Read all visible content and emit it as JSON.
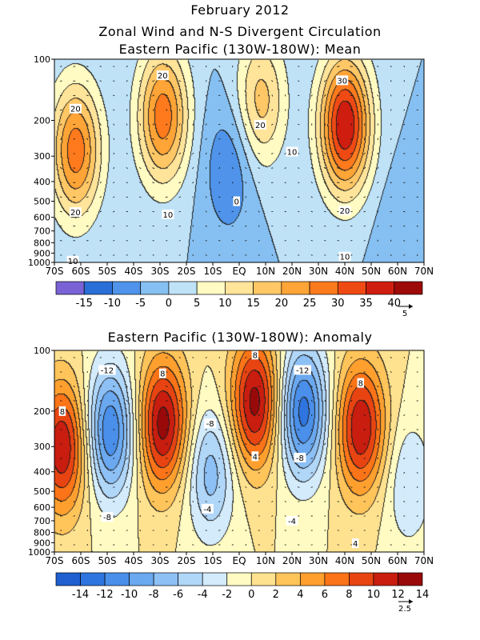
{
  "figure": {
    "title_line1": "February 2012",
    "title_line2": "Zonal Wind and N-S Divergent Circulation",
    "panel1_title": "Eastern Pacific (130W-180W): Mean",
    "panel2_title": "Eastern Pacific (130W-180W): Anomaly"
  },
  "chart_data": [
    {
      "type": "heatmap",
      "title": "Eastern Pacific (130W-180W): Mean",
      "x_ticks": [
        "70S",
        "60S",
        "50S",
        "40S",
        "30S",
        "20S",
        "10S",
        "EQ",
        "10N",
        "20N",
        "30N",
        "40N",
        "50N",
        "60N",
        "70N"
      ],
      "y_ticks": [
        100,
        200,
        300,
        400,
        500,
        600,
        700,
        800,
        900,
        1000
      ],
      "xlim": [
        -70,
        70
      ],
      "ylim": [
        1000,
        100
      ],
      "y_scale": "log",
      "colorbar_levels": [
        -15,
        -10,
        -5,
        0,
        5,
        10,
        15,
        20,
        25,
        30,
        35,
        40
      ],
      "colorbar_labels": [
        "-15",
        "-10",
        "-5",
        "0",
        "5",
        "10",
        "15",
        "20",
        "25",
        "30",
        "35",
        "40"
      ],
      "colorbar_colors": [
        "#7a62d6",
        "#2a6fd8",
        "#4f94ea",
        "#86c0f2",
        "#bfe2f7",
        "#fffbc2",
        "#ffe49a",
        "#ffc765",
        "#ffa436",
        "#ff7a1c",
        "#f04a14",
        "#cf1d10",
        "#9e0a0a"
      ],
      "vector_reference": "5",
      "contour_labels": [
        {
          "text": "20",
          "lat": -62,
          "p": 175
        },
        {
          "text": "20",
          "lat": -62,
          "p": 565
        },
        {
          "text": "20",
          "lat": -29,
          "p": 120
        },
        {
          "text": "10",
          "lat": -27,
          "p": 580
        },
        {
          "text": "10",
          "lat": -63,
          "p": 980
        },
        {
          "text": "0",
          "lat": -1,
          "p": 500
        },
        {
          "text": "20",
          "lat": 8,
          "p": 210
        },
        {
          "text": "10",
          "lat": 20,
          "p": 285
        },
        {
          "text": "30",
          "lat": 39,
          "p": 127
        },
        {
          "text": "20",
          "lat": 40,
          "p": 555
        },
        {
          "text": "10",
          "lat": 40,
          "p": 935
        }
      ],
      "field_centers": [
        {
          "lat": -62,
          "p": 280,
          "value": 28
        },
        {
          "lat": -29,
          "p": 190,
          "value": 28
        },
        {
          "lat": -4,
          "p": 350,
          "value": -10
        },
        {
          "lat": 8,
          "p": 160,
          "value": 17
        },
        {
          "lat": 40,
          "p": 210,
          "value": 40
        },
        {
          "lat": 62,
          "p": 800,
          "value": -5
        }
      ]
    },
    {
      "type": "heatmap",
      "title": "Eastern Pacific (130W-180W): Anomaly",
      "x_ticks": [
        "70S",
        "60S",
        "50S",
        "40S",
        "30S",
        "20S",
        "10S",
        "EQ",
        "10N",
        "20N",
        "30N",
        "40N",
        "50N",
        "60N",
        "70N"
      ],
      "y_ticks": [
        100,
        200,
        300,
        400,
        500,
        600,
        700,
        800,
        900,
        1000
      ],
      "xlim": [
        -70,
        70
      ],
      "ylim": [
        1000,
        100
      ],
      "y_scale": "log",
      "colorbar_levels": [
        -14,
        -12,
        -10,
        -8,
        -6,
        -4,
        -2,
        0,
        2,
        4,
        6,
        8,
        10,
        12,
        14
      ],
      "colorbar_labels": [
        "-14",
        "-12",
        "-10",
        "-8",
        "-6",
        "-4",
        "-2",
        "0",
        "2",
        "4",
        "6",
        "8",
        "10",
        "12",
        "14"
      ],
      "colorbar_colors": [
        "#1f5fd0",
        "#2f75df",
        "#4a8fe9",
        "#6aa8f0",
        "#8dc0f5",
        "#b0d6f8",
        "#d3ebfb",
        "#fffbc2",
        "#ffe28f",
        "#ffc45a",
        "#ffa02e",
        "#fb7417",
        "#e84412",
        "#c81d0f",
        "#9a0909"
      ],
      "vector_reference": "2.5",
      "contour_labels": [
        {
          "text": "8",
          "lat": -67,
          "p": 200
        },
        {
          "text": "-12",
          "lat": -50,
          "p": 125
        },
        {
          "text": "-8",
          "lat": -50,
          "p": 670
        },
        {
          "text": "8",
          "lat": -29,
          "p": 130
        },
        {
          "text": "-8",
          "lat": -11,
          "p": 230
        },
        {
          "text": "-4",
          "lat": -12,
          "p": 610
        },
        {
          "text": "8",
          "lat": 6,
          "p": 105
        },
        {
          "text": "4",
          "lat": 6,
          "p": 335
        },
        {
          "text": "-12",
          "lat": 24,
          "p": 125
        },
        {
          "text": "-8",
          "lat": 23,
          "p": 340
        },
        {
          "text": "-4",
          "lat": 20,
          "p": 700
        },
        {
          "text": "8",
          "lat": 46,
          "p": 145
        },
        {
          "text": "4",
          "lat": 44,
          "p": 905
        }
      ],
      "field_centers": [
        {
          "lat": -67,
          "p": 300,
          "value": 12
        },
        {
          "lat": -49,
          "p": 250,
          "value": -12
        },
        {
          "lat": -29,
          "p": 230,
          "value": 13
        },
        {
          "lat": -11,
          "p": 400,
          "value": -7
        },
        {
          "lat": 6,
          "p": 180,
          "value": 13
        },
        {
          "lat": 24,
          "p": 200,
          "value": -13
        },
        {
          "lat": 46,
          "p": 240,
          "value": 12
        },
        {
          "lat": 64,
          "p": 450,
          "value": -4
        }
      ]
    }
  ]
}
